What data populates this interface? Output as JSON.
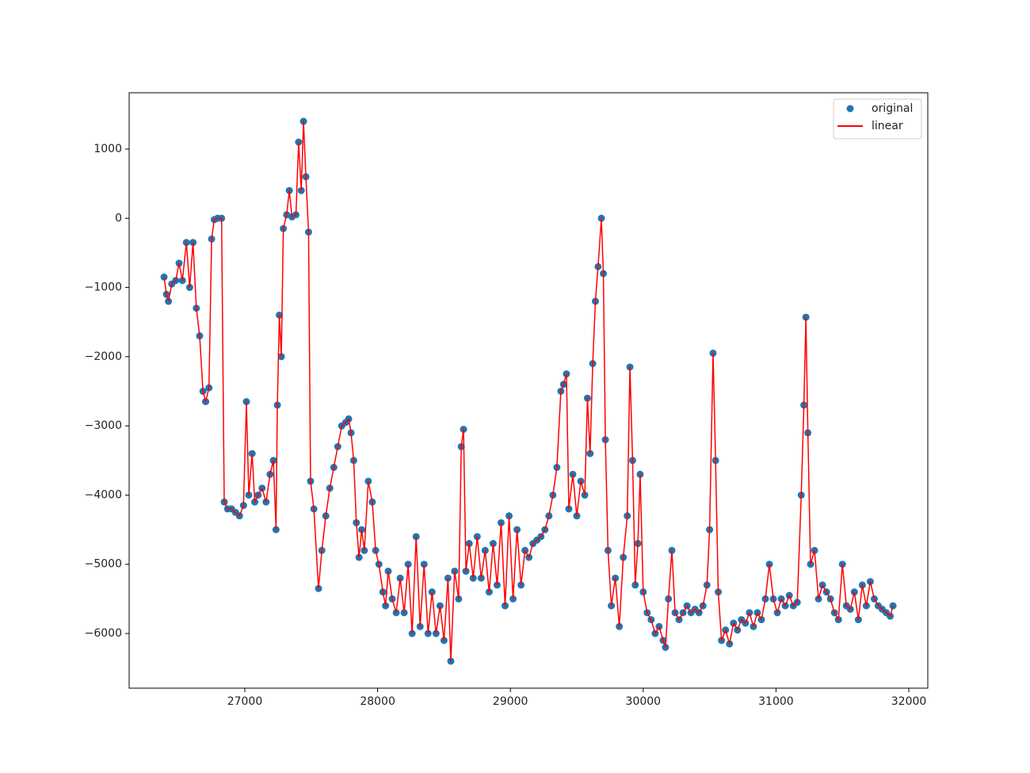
{
  "chart_data": {
    "type": "line",
    "x": [
      26392,
      26410,
      26425,
      26450,
      26480,
      26505,
      26530,
      26560,
      26585,
      26610,
      26635,
      26660,
      26685,
      26705,
      26730,
      26750,
      26770,
      26795,
      26825,
      26845,
      26870,
      26900,
      26930,
      26960,
      26990,
      27012,
      27030,
      27055,
      27075,
      27100,
      27130,
      27160,
      27190,
      27215,
      27235,
      27245,
      27260,
      27275,
      27290,
      27315,
      27335,
      27355,
      27385,
      27405,
      27425,
      27442,
      27460,
      27480,
      27495,
      27520,
      27555,
      27580,
      27610,
      27640,
      27670,
      27700,
      27730,
      27760,
      27782,
      27800,
      27820,
      27840,
      27860,
      27880,
      27900,
      27930,
      27960,
      27985,
      28010,
      28040,
      28060,
      28080,
      28110,
      28140,
      28170,
      28200,
      28230,
      28260,
      28290,
      28320,
      28350,
      28380,
      28410,
      28440,
      28470,
      28500,
      28530,
      28551,
      28580,
      28610,
      28630,
      28647,
      28665,
      28690,
      28720,
      28750,
      28780,
      28810,
      28840,
      28870,
      28900,
      28930,
      28960,
      28990,
      29020,
      29050,
      29080,
      29110,
      29140,
      29170,
      29200,
      29230,
      29260,
      29290,
      29320,
      29350,
      29380,
      29400,
      29422,
      29440,
      29470,
      29500,
      29530,
      29560,
      29580,
      29600,
      29620,
      29640,
      29660,
      29685,
      29700,
      29715,
      29735,
      29760,
      29790,
      29820,
      29850,
      29880,
      29900,
      29920,
      29940,
      29960,
      29977,
      30000,
      30030,
      30060,
      30090,
      30120,
      30150,
      30168,
      30190,
      30216,
      30240,
      30270,
      30300,
      30330,
      30360,
      30390,
      30420,
      30450,
      30480,
      30500,
      30526,
      30545,
      30565,
      30590,
      30620,
      30650,
      30680,
      30710,
      30740,
      30770,
      30800,
      30830,
      30860,
      30890,
      30920,
      30950,
      30980,
      31010,
      31040,
      31070,
      31100,
      31130,
      31160,
      31190,
      31210,
      31225,
      31240,
      31260,
      31290,
      31320,
      31350,
      31380,
      31410,
      31440,
      31470,
      31500,
      31530,
      31560,
      31590,
      31620,
      31650,
      31680,
      31710,
      31740,
      31770,
      31800,
      31830,
      31860,
      31881
    ],
    "series": [
      {
        "name": "original",
        "color": "#1f77b4",
        "style": "markers",
        "values": [
          -850,
          -1100,
          -1200,
          -950,
          -900,
          -650,
          -900,
          -350,
          -1000,
          -350,
          -1300,
          -1700,
          -2500,
          -2650,
          -2450,
          -300,
          -20,
          0,
          0,
          -4100,
          -4200,
          -4200,
          -4250,
          -4300,
          -4150,
          -2650,
          -4000,
          -3400,
          -4100,
          -4000,
          -3900,
          -4100,
          -3700,
          -3500,
          -4500,
          -2700,
          -1400,
          -2000,
          -150,
          50,
          400,
          20,
          50,
          1100,
          400,
          1400,
          600,
          -200,
          -3800,
          -4200,
          -5350,
          -4800,
          -4300,
          -3900,
          -3600,
          -3300,
          -3000,
          -2950,
          -2900,
          -3100,
          -3500,
          -4400,
          -4900,
          -4500,
          -4800,
          -3800,
          -4100,
          -4800,
          -5000,
          -5400,
          -5600,
          -5100,
          -5500,
          -5700,
          -5200,
          -5700,
          -5000,
          -6000,
          -4600,
          -5900,
          -5000,
          -6000,
          -5400,
          -6000,
          -5600,
          -6100,
          -5200,
          -6400,
          -5100,
          -5500,
          -3300,
          -3050,
          -5100,
          -4700,
          -5200,
          -4600,
          -5200,
          -4800,
          -5400,
          -4700,
          -5300,
          -4400,
          -5600,
          -4300,
          -5500,
          -4500,
          -5300,
          -4800,
          -4900,
          -4700,
          -4650,
          -4600,
          -4500,
          -4300,
          -4000,
          -3600,
          -2500,
          -2400,
          -2250,
          -4200,
          -3700,
          -4300,
          -3800,
          -4000,
          -2600,
          -3400,
          -2100,
          -1200,
          -700,
          0,
          -800,
          -3200,
          -4800,
          -5600,
          -5200,
          -5900,
          -4900,
          -4300,
          -2150,
          -3500,
          -5300,
          -4700,
          -3700,
          -5400,
          -5700,
          -5800,
          -6000,
          -5900,
          -6100,
          -6200,
          -5500,
          -4800,
          -5700,
          -5800,
          -5700,
          -5600,
          -5700,
          -5650,
          -5700,
          -5600,
          -5300,
          -4500,
          -1950,
          -3500,
          -5400,
          -6100,
          -5950,
          -6150,
          -5850,
          -5950,
          -5800,
          -5850,
          -5700,
          -5900,
          -5700,
          -5800,
          -5500,
          -5000,
          -5500,
          -5700,
          -5500,
          -5600,
          -5450,
          -5600,
          -5550,
          -4000,
          -2700,
          -1430,
          -3100,
          -5000,
          -4800,
          -5500,
          -5300,
          -5400,
          -5500,
          -5700,
          -5800,
          -5000,
          -5600,
          -5650,
          -5400,
          -5800,
          -5300,
          -5600,
          -5250,
          -5500,
          -5600,
          -5650,
          -5700,
          -5750,
          -5600
        ]
      },
      {
        "name": "linear",
        "color": "red",
        "style": "line",
        "values": [
          -850,
          -1100,
          -1200,
          -950,
          -900,
          -650,
          -900,
          -350,
          -1000,
          -350,
          -1300,
          -1700,
          -2500,
          -2650,
          -2450,
          -300,
          -20,
          0,
          0,
          -4100,
          -4200,
          -4200,
          -4250,
          -4300,
          -4150,
          -2650,
          -4000,
          -3400,
          -4100,
          -4000,
          -3900,
          -4100,
          -3700,
          -3500,
          -4500,
          -2700,
          -1400,
          -2000,
          -150,
          50,
          400,
          20,
          50,
          1100,
          400,
          1400,
          600,
          -200,
          -3800,
          -4200,
          -5350,
          -4800,
          -4300,
          -3900,
          -3600,
          -3300,
          -3000,
          -2950,
          -2900,
          -3100,
          -3500,
          -4400,
          -4900,
          -4500,
          -4800,
          -3800,
          -4100,
          -4800,
          -5000,
          -5400,
          -5600,
          -5100,
          -5500,
          -5700,
          -5200,
          -5700,
          -5000,
          -6000,
          -4600,
          -5900,
          -5000,
          -6000,
          -5400,
          -6000,
          -5600,
          -6100,
          -5200,
          -6400,
          -5100,
          -5500,
          -3300,
          -3050,
          -5100,
          -4700,
          -5200,
          -4600,
          -5200,
          -4800,
          -5400,
          -4700,
          -5300,
          -4400,
          -5600,
          -4300,
          -5500,
          -4500,
          -5300,
          -4800,
          -4900,
          -4700,
          -4650,
          -4600,
          -4500,
          -4300,
          -4000,
          -3600,
          -2500,
          -2400,
          -2250,
          -4200,
          -3700,
          -4300,
          -3800,
          -4000,
          -2600,
          -3400,
          -2100,
          -1200,
          -700,
          0,
          -800,
          -3200,
          -4800,
          -5600,
          -5200,
          -5900,
          -4900,
          -4300,
          -2150,
          -3500,
          -5300,
          -4700,
          -3700,
          -5400,
          -5700,
          -5800,
          -6000,
          -5900,
          -6100,
          -6200,
          -5500,
          -4800,
          -5700,
          -5800,
          -5700,
          -5600,
          -5700,
          -5650,
          -5700,
          -5600,
          -5300,
          -4500,
          -1950,
          -3500,
          -5400,
          -6100,
          -5950,
          -6150,
          -5850,
          -5950,
          -5800,
          -5850,
          -5700,
          -5900,
          -5700,
          -5800,
          -5500,
          -5000,
          -5500,
          -5700,
          -5500,
          -5600,
          -5450,
          -5600,
          -5550,
          -4000,
          -2700,
          -1430,
          -3100,
          -5000,
          -4800,
          -5500,
          -5300,
          -5400,
          -5500,
          -5700,
          -5800,
          -5000,
          -5600,
          -5650,
          -5400,
          -5800,
          -5300,
          -5600,
          -5250,
          -5500,
          -5600,
          -5650,
          -5700,
          -5750,
          -5600
        ]
      }
    ],
    "xlim": [
      26129,
      32143
    ],
    "ylim": [
      -6790,
      1813
    ],
    "xticks": [
      27000,
      28000,
      29000,
      30000,
      31000,
      32000
    ],
    "yticks": [
      {
        "value": -6000,
        "label": "−6000"
      },
      {
        "value": -5000,
        "label": "−5000"
      },
      {
        "value": -4000,
        "label": "−4000"
      },
      {
        "value": -3000,
        "label": "−3000"
      },
      {
        "value": -2000,
        "label": "−2000"
      },
      {
        "value": -1000,
        "label": "−1000"
      },
      0,
      1000
    ],
    "legend": "upper right",
    "grid": false
  }
}
